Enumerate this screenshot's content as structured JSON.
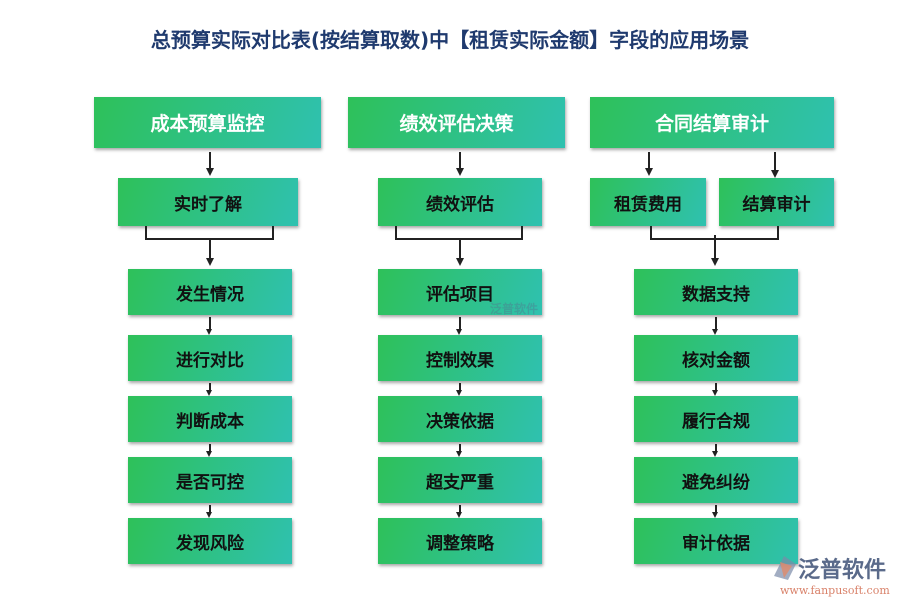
{
  "title": "总预算实际对比表(按结算取数)中【租赁实际金额】字段的应用场景",
  "columns": [
    {
      "header": "成本预算监控",
      "subs": [
        "实时了解"
      ],
      "items": [
        "发生情况",
        "进行对比",
        "判断成本",
        "是否可控",
        "发现风险"
      ]
    },
    {
      "header": "绩效评估决策",
      "subs": [
        "绩效评估"
      ],
      "items": [
        "评估项目",
        "控制效果",
        "决策依据",
        "超支严重",
        "调整策略"
      ]
    },
    {
      "header": "合同结算审计",
      "subs": [
        "租赁费用",
        "结算审计"
      ],
      "items": [
        "数据支持",
        "核对金额",
        "履行合规",
        "避免纠纷",
        "审计依据"
      ]
    }
  ],
  "watermark": {
    "brand": "泛普软件",
    "url": "www.fanpusoft.com"
  },
  "colors": {
    "gradient_start": "#2ec159",
    "gradient_end": "#2fc1b0",
    "title": "#1f3a6e"
  }
}
